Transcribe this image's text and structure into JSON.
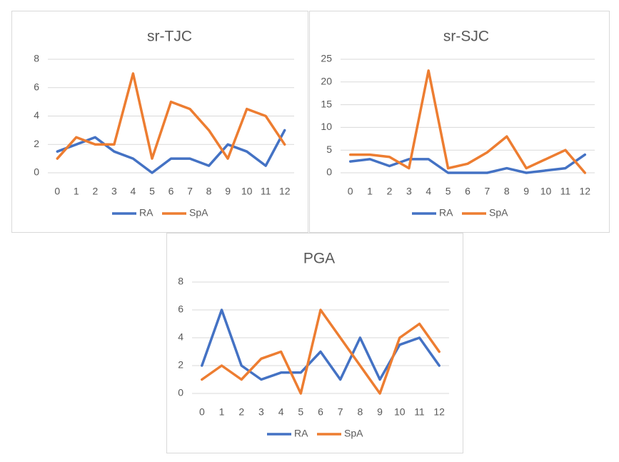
{
  "colors": {
    "RA": "#4472c4",
    "SpA": "#ed7d31",
    "grid": "#d9d9d9",
    "text": "#595959"
  },
  "chart_data": [
    {
      "type": "line",
      "title": "sr-TJC",
      "categories": [
        "0",
        "1",
        "2",
        "3",
        "4",
        "5",
        "6",
        "7",
        "8",
        "9",
        "10",
        "11",
        "12"
      ],
      "ylim": [
        0,
        8
      ],
      "yticks": [
        "0",
        "2",
        "4",
        "6",
        "8"
      ],
      "grid": true,
      "legend": "bottom",
      "series": [
        {
          "name": "RA",
          "values": [
            1.5,
            2,
            2.5,
            1.5,
            1,
            0,
            1,
            1,
            0.5,
            2,
            1.5,
            0.5,
            3
          ]
        },
        {
          "name": "SpA",
          "values": [
            1,
            2.5,
            2,
            2,
            7,
            1,
            5,
            4.5,
            3,
            1,
            4.5,
            4,
            2
          ]
        }
      ]
    },
    {
      "type": "line",
      "title": "sr-SJC",
      "categories": [
        "0",
        "1",
        "2",
        "3",
        "4",
        "5",
        "6",
        "7",
        "8",
        "9",
        "10",
        "11",
        "12"
      ],
      "ylim": [
        0,
        25
      ],
      "yticks": [
        "0",
        "5",
        "10",
        "15",
        "20",
        "25"
      ],
      "grid": true,
      "legend": "bottom",
      "series": [
        {
          "name": "RA",
          "values": [
            2.5,
            3,
            1.5,
            3,
            3,
            0,
            0,
            0,
            1,
            0,
            0.5,
            1,
            4
          ]
        },
        {
          "name": "SpA",
          "values": [
            4,
            4,
            3.5,
            1,
            22.5,
            1,
            2,
            4.5,
            8,
            1,
            3,
            5,
            0
          ]
        }
      ]
    },
    {
      "type": "line",
      "title": "PGA",
      "categories": [
        "0",
        "1",
        "2",
        "3",
        "4",
        "5",
        "6",
        "7",
        "8",
        "9",
        "10",
        "11",
        "12"
      ],
      "ylim": [
        0,
        8
      ],
      "yticks": [
        "0",
        "2",
        "4",
        "6",
        "8"
      ],
      "grid": true,
      "legend": "bottom",
      "series": [
        {
          "name": "RA",
          "values": [
            2,
            6,
            2,
            1,
            1.5,
            1.5,
            3,
            1,
            4,
            1,
            3.5,
            4,
            2
          ]
        },
        {
          "name": "SpA",
          "values": [
            1,
            2,
            1,
            2.5,
            3,
            0,
            6,
            4,
            2,
            0,
            4,
            5,
            3
          ]
        }
      ]
    }
  ]
}
